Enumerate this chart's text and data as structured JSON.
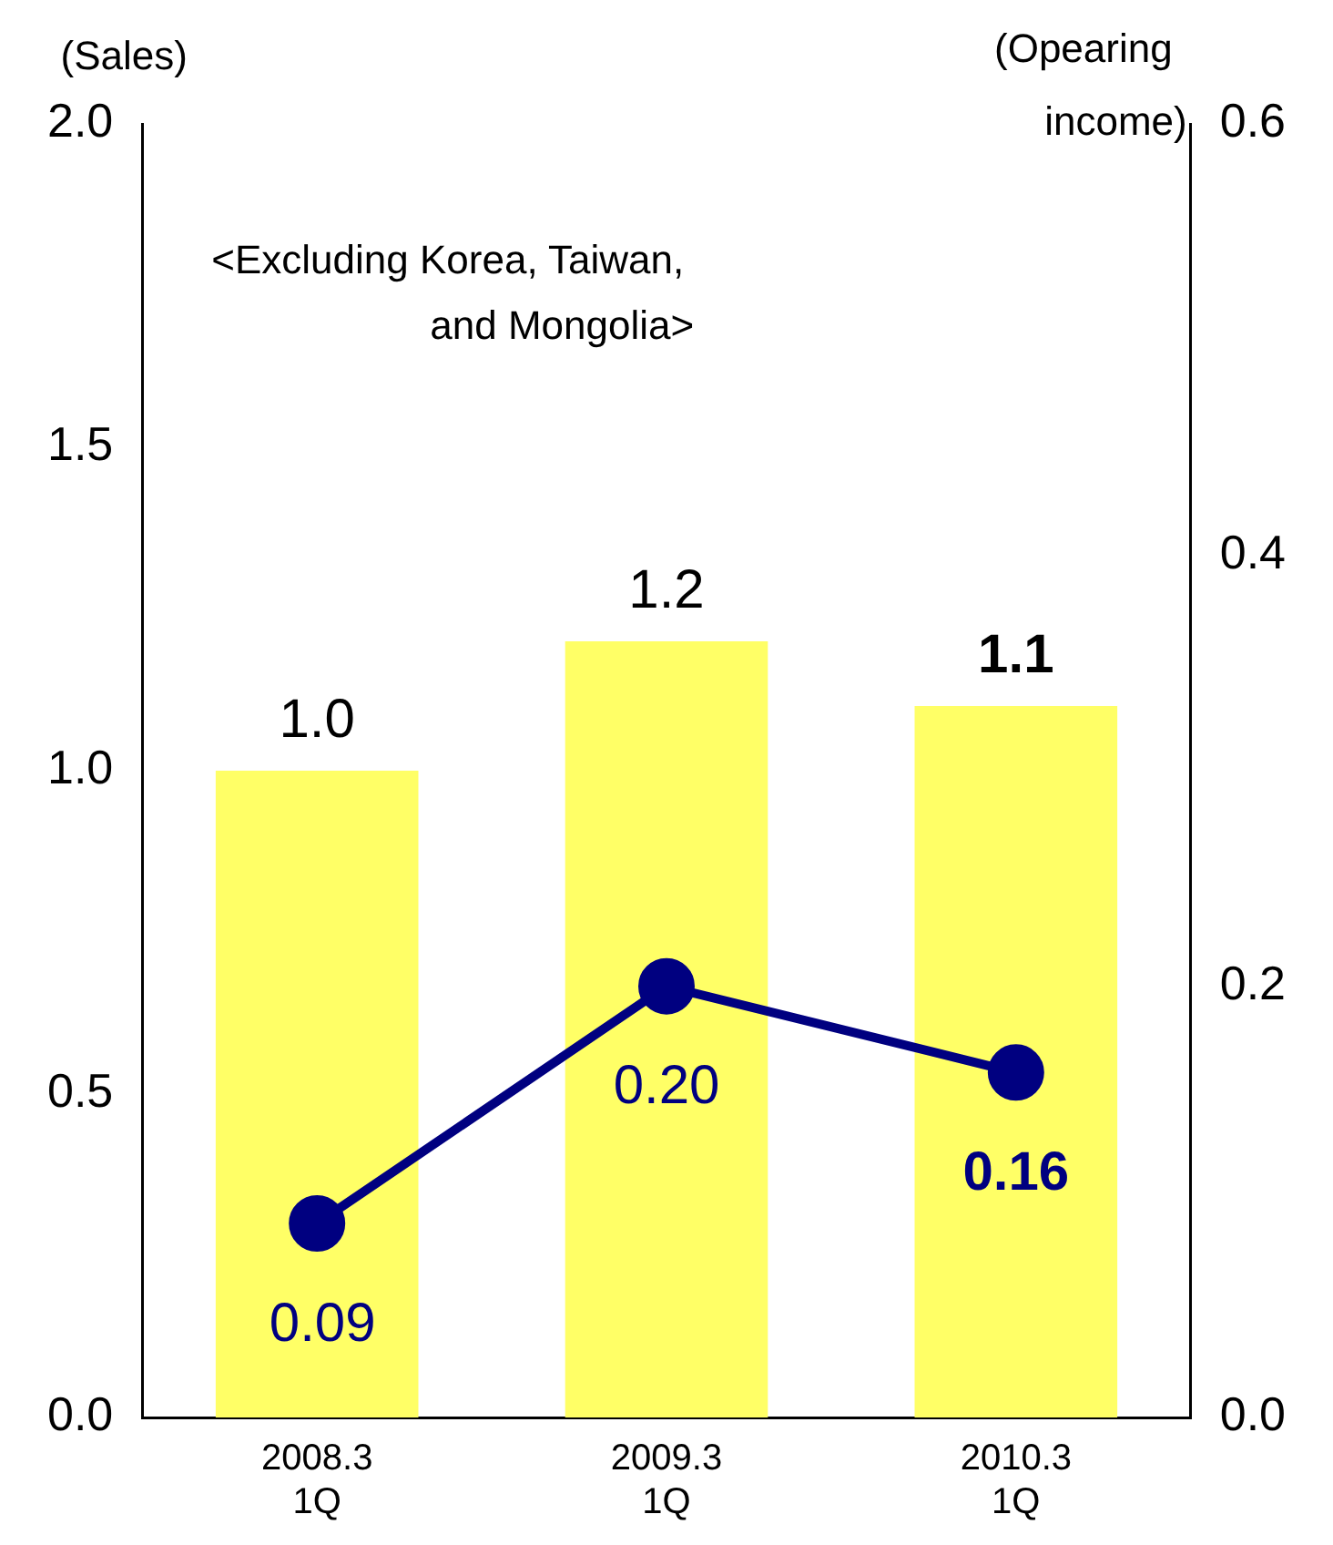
{
  "chart_data": {
    "type": "bar",
    "ylabel": "(Sales)",
    "y2label": "(Opearing income)",
    "annotations": [
      "<Excluding Korea, Taiwan, and Mongolia>"
    ],
    "categories": [
      "2008.3 1Q",
      "2009.3 1Q",
      "2010.3 1Q"
    ],
    "series": [
      {
        "color": "#ffff66",
        "values": [
          1.0,
          1.2,
          1.1
        ],
        "value_labels": [
          "1.0",
          "1.2",
          "1.1"
        ]
      },
      {
        "type": "line",
        "axis": "y2",
        "color": "#000080",
        "values": [
          0.09,
          0.2,
          0.16
        ],
        "value_labels": [
          "0.09",
          "0.20",
          "0.16"
        ]
      }
    ],
    "ylim": [
      0,
      2
    ],
    "yticks": [
      {
        "value": 0,
        "label": "0.0"
      },
      0.5,
      {
        "value": 1,
        "label": "1.0"
      },
      1.5,
      {
        "value": 2,
        "label": "2.0"
      }
    ],
    "y2lim": [
      0,
      0.6
    ],
    "y2ticks": [
      {
        "value": 0,
        "label": "0.0"
      },
      0.2,
      0.4,
      0.6
    ],
    "grid": false,
    "legend": false,
    "marker": "circle",
    "line_style": "solid"
  }
}
